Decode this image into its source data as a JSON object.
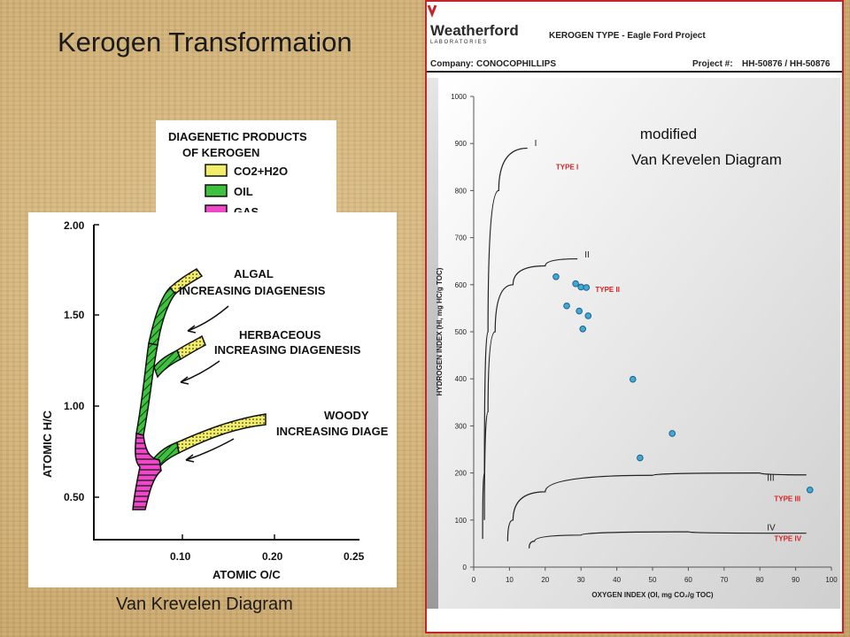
{
  "slide": {
    "title": "Kerogen Transformation",
    "left_caption": "Van Krevelen Diagram"
  },
  "left_figure": {
    "legend_title_1": "DIAGENETIC PRODUCTS",
    "legend_title_2": "OF KEROGEN",
    "legend_items": [
      {
        "label": "CO2+H2O",
        "color": "#f3ee6a"
      },
      {
        "label": "OIL",
        "color": "#3cc23c"
      },
      {
        "label": "GAS",
        "color": "#ee48c8"
      }
    ],
    "y_axis_label": "ATOMIC  H/C",
    "x_axis_label": "ATOMIC  O/C",
    "y_ticks": [
      "2.00",
      "1.50",
      "1.00",
      "0.50"
    ],
    "x_ticks": [
      "0.10",
      "0.20",
      "0.25"
    ],
    "paths": [
      {
        "line1": "ALGAL",
        "line2": "INCREASING DIAGENESIS"
      },
      {
        "line1": "HERBACEOUS",
        "line2": "INCREASING DIAGENESIS"
      },
      {
        "line1": "WOODY",
        "line2": "INCREASING DIAGE"
      }
    ]
  },
  "right_figure": {
    "logo_text": "Weatherford",
    "logo_subtext": "L A B O R A T O R I E S",
    "report_title": "KEROGEN TYPE - Eagle Ford Project",
    "company_label": "Company:",
    "company_value": "CONOCOPHILLIPS",
    "project_label": "Project #:",
    "project_value": "HH-50876 / HH-50876",
    "annotation_line1": "modified",
    "annotation_line2": "Van Krevelen Diagram",
    "chart_data": {
      "type": "scatter",
      "xlabel": "OXYGEN INDEX (OI, mg CO₂/g TOC)",
      "ylabel": "HYDROGEN INDEX (HI, mg HC/g TOC)",
      "xlim": [
        0,
        100
      ],
      "ylim": [
        0,
        1000
      ],
      "x_ticks": [
        0,
        10,
        20,
        30,
        40,
        50,
        60,
        70,
        80,
        90,
        100
      ],
      "y_ticks": [
        0,
        100,
        200,
        300,
        400,
        500,
        600,
        700,
        800,
        900,
        1000
      ],
      "points": [
        {
          "x": 23,
          "y": 617
        },
        {
          "x": 28.5,
          "y": 602
        },
        {
          "x": 30,
          "y": 595
        },
        {
          "x": 31.5,
          "y": 594
        },
        {
          "x": 26,
          "y": 555
        },
        {
          "x": 29.5,
          "y": 544
        },
        {
          "x": 32,
          "y": 534
        },
        {
          "x": 30.5,
          "y": 506
        },
        {
          "x": 44.5,
          "y": 399
        },
        {
          "x": 55.5,
          "y": 284
        },
        {
          "x": 46.5,
          "y": 232
        },
        {
          "x": 94,
          "y": 164
        }
      ],
      "point_color": "#3fa9d8",
      "curves": [
        {
          "roman": "I",
          "type_label": "TYPE I"
        },
        {
          "roman": "II",
          "type_label": "TYPE II"
        },
        {
          "roman": "III",
          "type_label": "TYPE III"
        },
        {
          "roman": "IV",
          "type_label": "TYPE IV"
        }
      ],
      "type_label_color": "#d62020"
    }
  }
}
